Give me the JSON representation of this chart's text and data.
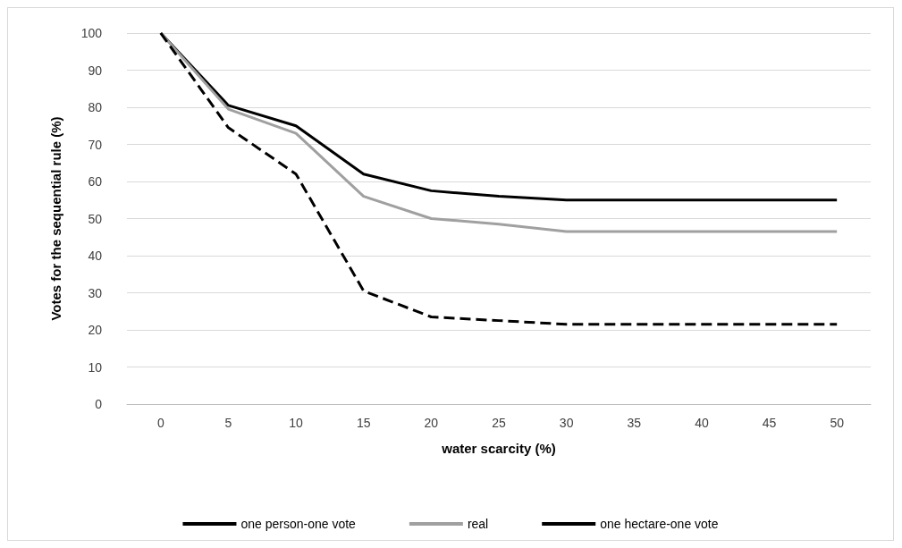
{
  "chart_data": {
    "type": "line",
    "xlabel": "water scarcity (%)",
    "ylabel": "Votes for the sequential rule (%)",
    "categories": [
      "0",
      "5",
      "10",
      "15",
      "20",
      "25",
      "30",
      "35",
      "40",
      "45",
      "50"
    ],
    "ylim": [
      0,
      100
    ],
    "yticks": [
      0,
      10,
      20,
      30,
      40,
      50,
      60,
      70,
      80,
      90,
      100
    ],
    "grid": "y",
    "legend": "bottom",
    "marker": "none",
    "series": [
      {
        "name": "one person-one vote",
        "color": "#000000",
        "line_style": "solid",
        "values": [
          100,
          80.5,
          75,
          62,
          57.5,
          56,
          55,
          55,
          55,
          55,
          55
        ]
      },
      {
        "name": "real",
        "color": "#a0a0a0",
        "line_style": "solid",
        "values": [
          100,
          79.5,
          73,
          56,
          50,
          48.5,
          46.5,
          46.5,
          46.5,
          46.5,
          46.5
        ]
      },
      {
        "name": "one hectare-one vote",
        "color": "#000000",
        "line_style": "dashed",
        "values": [
          100,
          74.5,
          62,
          30.5,
          23.5,
          22.5,
          21.5,
          21.5,
          21.5,
          21.5,
          21.5
        ]
      }
    ]
  }
}
